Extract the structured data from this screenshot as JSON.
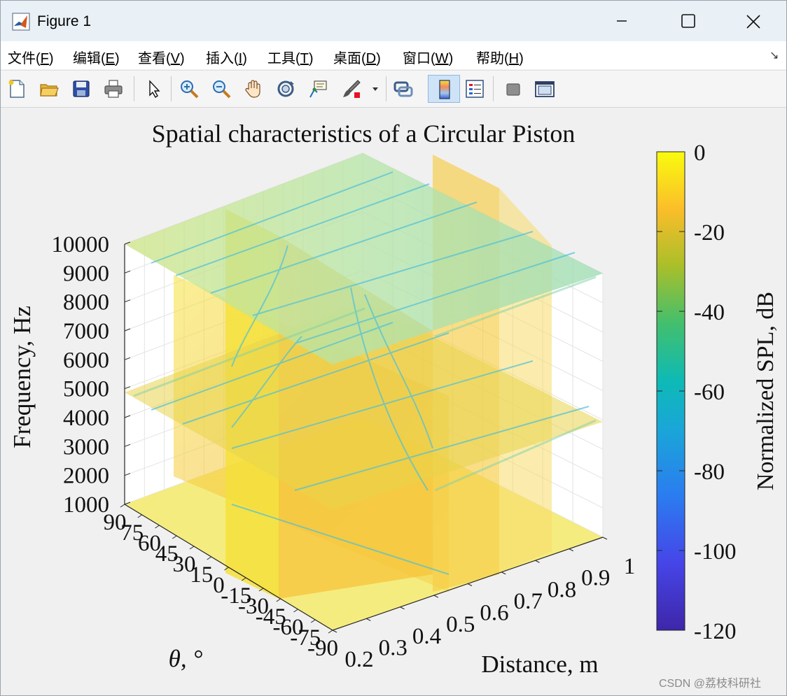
{
  "window": {
    "title": "Figure 1",
    "controls": {
      "minimize": "minimize",
      "maximize": "maximize",
      "close": "close"
    }
  },
  "menu": [
    {
      "label": "文件(",
      "key": "F",
      "tail": ")"
    },
    {
      "label": "编辑(",
      "key": "E",
      "tail": ")"
    },
    {
      "label": "查看(",
      "key": "V",
      "tail": ")"
    },
    {
      "label": "插入(",
      "key": "I",
      "tail": ")"
    },
    {
      "label": "工具(",
      "key": "T",
      "tail": ")"
    },
    {
      "label": "桌面(",
      "key": "D",
      "tail": ")"
    },
    {
      "label": "窗口(",
      "key": "W",
      "tail": ")"
    },
    {
      "label": "帮助(",
      "key": "H",
      "tail": ")"
    }
  ],
  "menu_overflow_icon": "arrow-down-right-icon",
  "toolbar": [
    "new-figure-icon",
    "open-file-icon",
    "save-icon",
    "print-icon",
    "select-arrow-icon",
    "zoom-in-icon",
    "zoom-out-icon",
    "pan-hand-icon",
    "rotate-3d-icon",
    "data-cursor-icon",
    "brush-icon",
    "link-plot-icon",
    "colorbar-icon",
    "legend-icon",
    "hide-tools-icon",
    "dock-figure-icon"
  ],
  "chart_data": {
    "type": "volumetric slice plot",
    "title": "Spatial characteristics of a Circular Piston",
    "xlabel": "Distance, m",
    "ylabel": "θ, °",
    "zlabel": "Frequency, Hz",
    "x_ticks": [
      "0.2",
      "0.3",
      "0.4",
      "0.5",
      "0.6",
      "0.7",
      "0.8",
      "0.9",
      "1"
    ],
    "y_ticks": [
      "90",
      "75",
      "60",
      "45",
      "30",
      "15",
      "0",
      "-15",
      "-30",
      "-45",
      "-60",
      "-75",
      "-90"
    ],
    "z_ticks": [
      "1000",
      "2000",
      "3000",
      "4000",
      "5000",
      "6000",
      "7000",
      "8000",
      "9000",
      "10000"
    ],
    "xlim": [
      0.2,
      1
    ],
    "ylim": [
      -90,
      90
    ],
    "zlim": [
      1000,
      10000
    ],
    "slices": {
      "x": [
        0.4,
        0.8
      ],
      "y": [
        0
      ],
      "z": [
        1000,
        5000,
        10000
      ]
    },
    "colorbar": {
      "label": "Normalized SPL, dB",
      "ticks": [
        "0",
        "-20",
        "-40",
        "-60",
        "-80",
        "-100",
        "-120"
      ],
      "range": [
        -120,
        0
      ],
      "colormap": "parula",
      "colors": [
        "#f9fb0e",
        "#fbbe2a",
        "#a8bf2a",
        "#54bb54",
        "#0db6c4",
        "#1a8ee6",
        "#3e54f6",
        "#3e26a8"
      ]
    },
    "grid": true,
    "view": "3d"
  },
  "watermark": "CSDN @荔枝科研社"
}
